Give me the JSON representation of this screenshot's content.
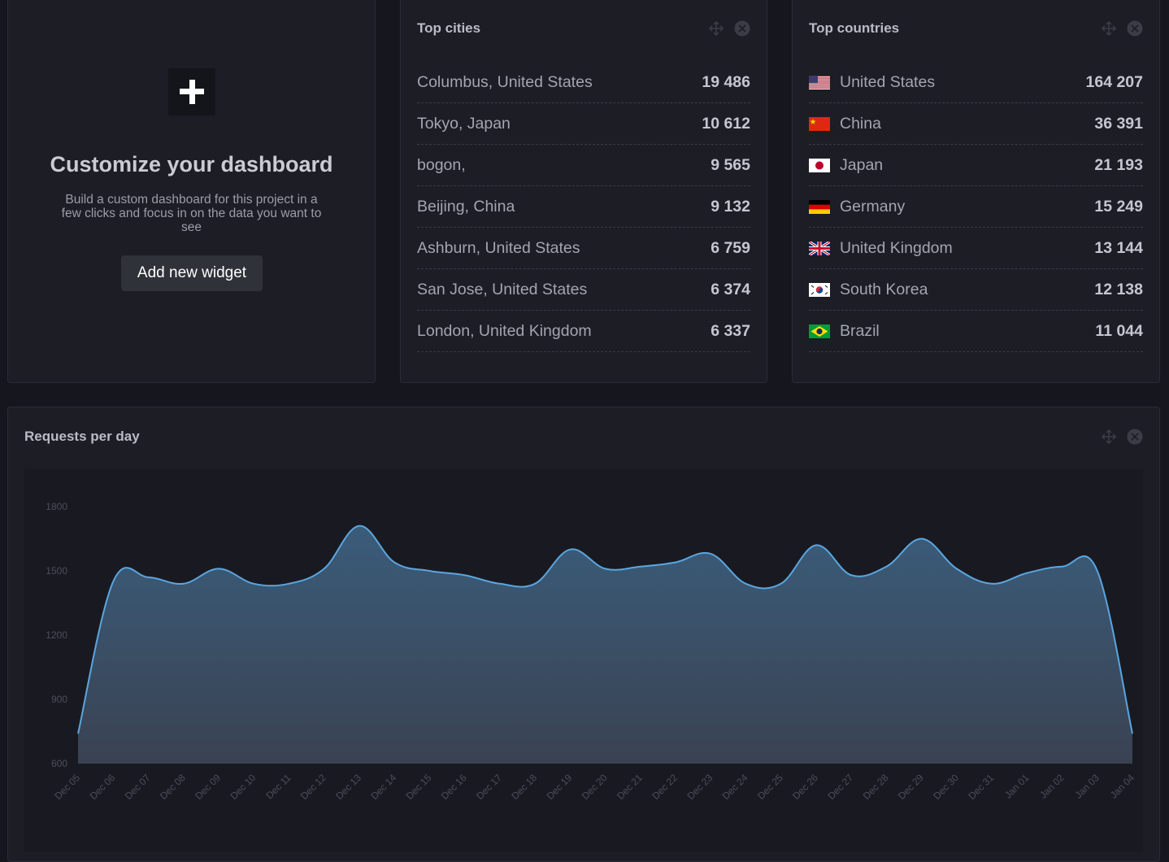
{
  "customize": {
    "title": "Customize your dashboard",
    "description": "Build a custom dashboard for this project in a few clicks and focus in on the data you want to see",
    "button_label": "Add new widget"
  },
  "top_cities": {
    "title": "Top cities",
    "rows": [
      {
        "label": "Columbus, United States",
        "value": "19 486"
      },
      {
        "label": "Tokyo, Japan",
        "value": "10 612"
      },
      {
        "label": "bogon,",
        "value": "9 565"
      },
      {
        "label": "Beijing, China",
        "value": "9 132"
      },
      {
        "label": "Ashburn, United States",
        "value": "6 759"
      },
      {
        "label": "San Jose, United States",
        "value": "6 374"
      },
      {
        "label": "London, United Kingdom",
        "value": "6 337"
      }
    ]
  },
  "top_countries": {
    "title": "Top countries",
    "rows": [
      {
        "label": "United States",
        "value": "164 207",
        "flag": "us-flag-icon"
      },
      {
        "label": "China",
        "value": "36 391",
        "flag": "cn-flag-icon"
      },
      {
        "label": "Japan",
        "value": "21 193",
        "flag": "jp-flag-icon"
      },
      {
        "label": "Germany",
        "value": "15 249",
        "flag": "de-flag-icon"
      },
      {
        "label": "United Kingdom",
        "value": "13 144",
        "flag": "gb-flag-icon"
      },
      {
        "label": "South Korea",
        "value": "12 138",
        "flag": "kr-flag-icon"
      },
      {
        "label": "Brazil",
        "value": "11 044",
        "flag": "br-flag-icon"
      }
    ]
  },
  "chart_data": {
    "type": "area",
    "title": "Requests per day",
    "xlabel": "",
    "ylabel": "",
    "ylim": [
      600,
      1800
    ],
    "yticks": [
      600,
      900,
      1200,
      1500,
      1800
    ],
    "grid": false,
    "x": [
      "Dec 05",
      "Dec 06",
      "Dec 07",
      "Dec 08",
      "Dec 09",
      "Dec 10",
      "Dec 11",
      "Dec 12",
      "Dec 13",
      "Dec 14",
      "Dec 15",
      "Dec 16",
      "Dec 17",
      "Dec 18",
      "Dec 19",
      "Dec 20",
      "Dec 21",
      "Dec 22",
      "Dec 23",
      "Dec 24",
      "Dec 25",
      "Dec 26",
      "Dec 27",
      "Dec 28",
      "Dec 29",
      "Dec 30",
      "Dec 31",
      "Jan 01",
      "Jan 02",
      "Jan 03",
      "Jan 04"
    ],
    "values": [
      740,
      1450,
      1470,
      1440,
      1510,
      1440,
      1440,
      1510,
      1710,
      1540,
      1500,
      1480,
      1440,
      1440,
      1600,
      1510,
      1520,
      1540,
      1580,
      1440,
      1440,
      1620,
      1480,
      1520,
      1650,
      1510,
      1440,
      1490,
      1520,
      1500,
      740
    ],
    "line_color": "#5aa6e0",
    "fill_top_color": "#3a5c7a",
    "fill_bottom_color": "#3a4252"
  },
  "colors": {
    "background": "#16171e",
    "card": "#1c1d25",
    "accent": "#5aa6e0"
  },
  "icons": {
    "move": "move-icon",
    "close": "close-icon",
    "plus": "plus-icon"
  }
}
